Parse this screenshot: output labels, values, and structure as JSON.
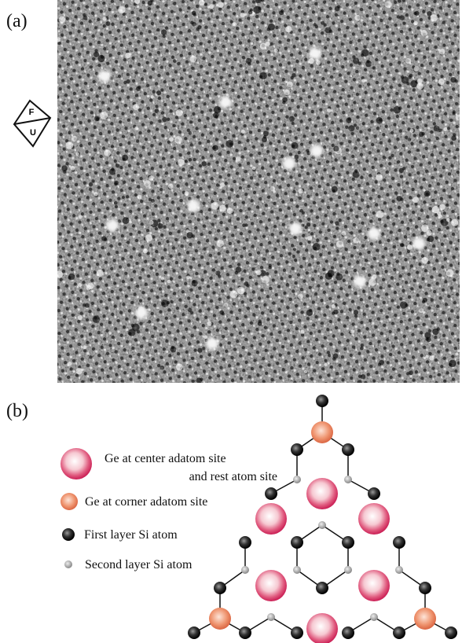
{
  "panel_a": {
    "label": "(a)",
    "orientation": {
      "top": "F",
      "bottom": "U"
    }
  },
  "panel_b": {
    "label": "(b)",
    "legend": [
      {
        "lines": [
          "Ge at center adatom site",
          "and rest atom site"
        ]
      },
      {
        "lines": [
          "Ge at corner adatom site"
        ]
      },
      {
        "lines": [
          "First layer Si atom"
        ]
      },
      {
        "lines": [
          "Second layer Si atom"
        ]
      }
    ]
  }
}
